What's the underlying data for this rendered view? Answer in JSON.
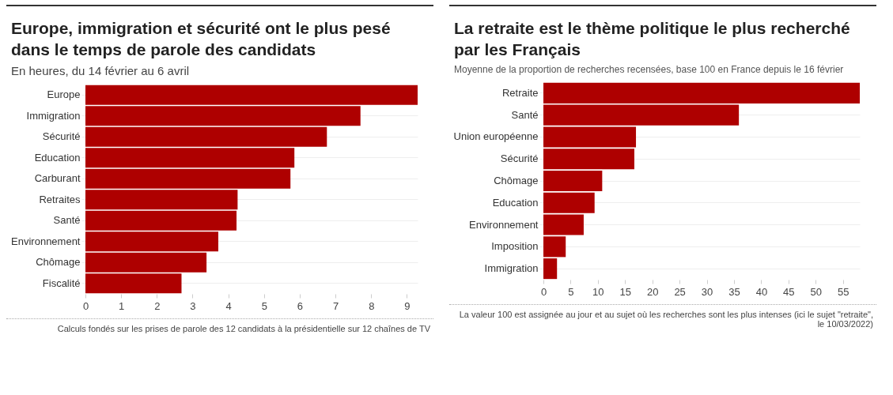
{
  "chart_data": [
    {
      "type": "bar",
      "orientation": "horizontal",
      "title": "Europe, immigration et sécurité ont le plus pesé dans le temps de parole des candidats",
      "subtitle": "En heures, du 14 février au 6 avril",
      "categories": [
        "Europe",
        "Immigration",
        "Sécurité",
        "Education",
        "Carburant",
        "Retraites",
        "Santé",
        "Environnement",
        "Chômage",
        "Fiscalité"
      ],
      "values": [
        9.3,
        7.7,
        6.76,
        5.85,
        5.74,
        4.26,
        4.23,
        3.72,
        3.39,
        2.69
      ],
      "color": "#ae0000",
      "xlim": [
        0,
        9.3
      ],
      "xticks": [
        0,
        1,
        2,
        3,
        4,
        5,
        6,
        7,
        8,
        9
      ],
      "grid": "y",
      "annotations": [
        "Calculs fondés sur les prises de parole des 12 candidats à la présidentielle sur 12 chaînes de TV"
      ]
    },
    {
      "type": "bar",
      "orientation": "horizontal",
      "title": "La retraite est le thème politique le plus recherché par les Français",
      "subtitle": "Moyenne de la proportion de recherches recensées, base 100 en France depuis le 16 février",
      "categories": [
        "Retraite",
        "Santé",
        "Union européenne",
        "Sécurité",
        "Chômage",
        "Education",
        "Environnement",
        "Imposition",
        "Immigration"
      ],
      "values": [
        58.1,
        35.9,
        17.0,
        16.7,
        10.8,
        9.4,
        7.4,
        4.1,
        2.5
      ],
      "color": "#ae0000",
      "xlim": [
        0,
        58.1
      ],
      "xticks": [
        0,
        5,
        10,
        15,
        20,
        25,
        30,
        35,
        40,
        45,
        50,
        55
      ],
      "grid": "y",
      "annotations": [
        "La valeur 100 est assignée au jour et au sujet où les recherches sont les plus intenses (ici le sujet \"retraite\", le 10/03/2022)"
      ]
    }
  ]
}
